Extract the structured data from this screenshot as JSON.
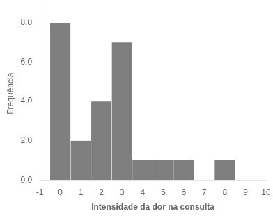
{
  "chart_data": {
    "type": "bar",
    "x": [
      0,
      1,
      2,
      3,
      4,
      5,
      6,
      8
    ],
    "values": [
      8,
      2,
      4,
      7,
      1,
      1,
      1,
      1
    ],
    "color": "#7f7f7f",
    "xlabel": "Intensidade da dor na consulta",
    "ylabel": "Frequência",
    "xlim": [
      -1,
      10
    ],
    "xticks": [
      -1,
      0,
      1,
      2,
      3,
      4,
      5,
      6,
      7,
      8,
      9,
      10
    ],
    "ylim": [
      0,
      8.8
    ],
    "yticks": [
      {
        "value": 0,
        "label": "0,0"
      },
      {
        "value": 2,
        "label": "2,0"
      },
      {
        "value": 4,
        "label": "4,0"
      },
      {
        "value": 6,
        "label": "6,0"
      },
      {
        "value": 8,
        "label": "8,0"
      }
    ],
    "grid": false
  }
}
